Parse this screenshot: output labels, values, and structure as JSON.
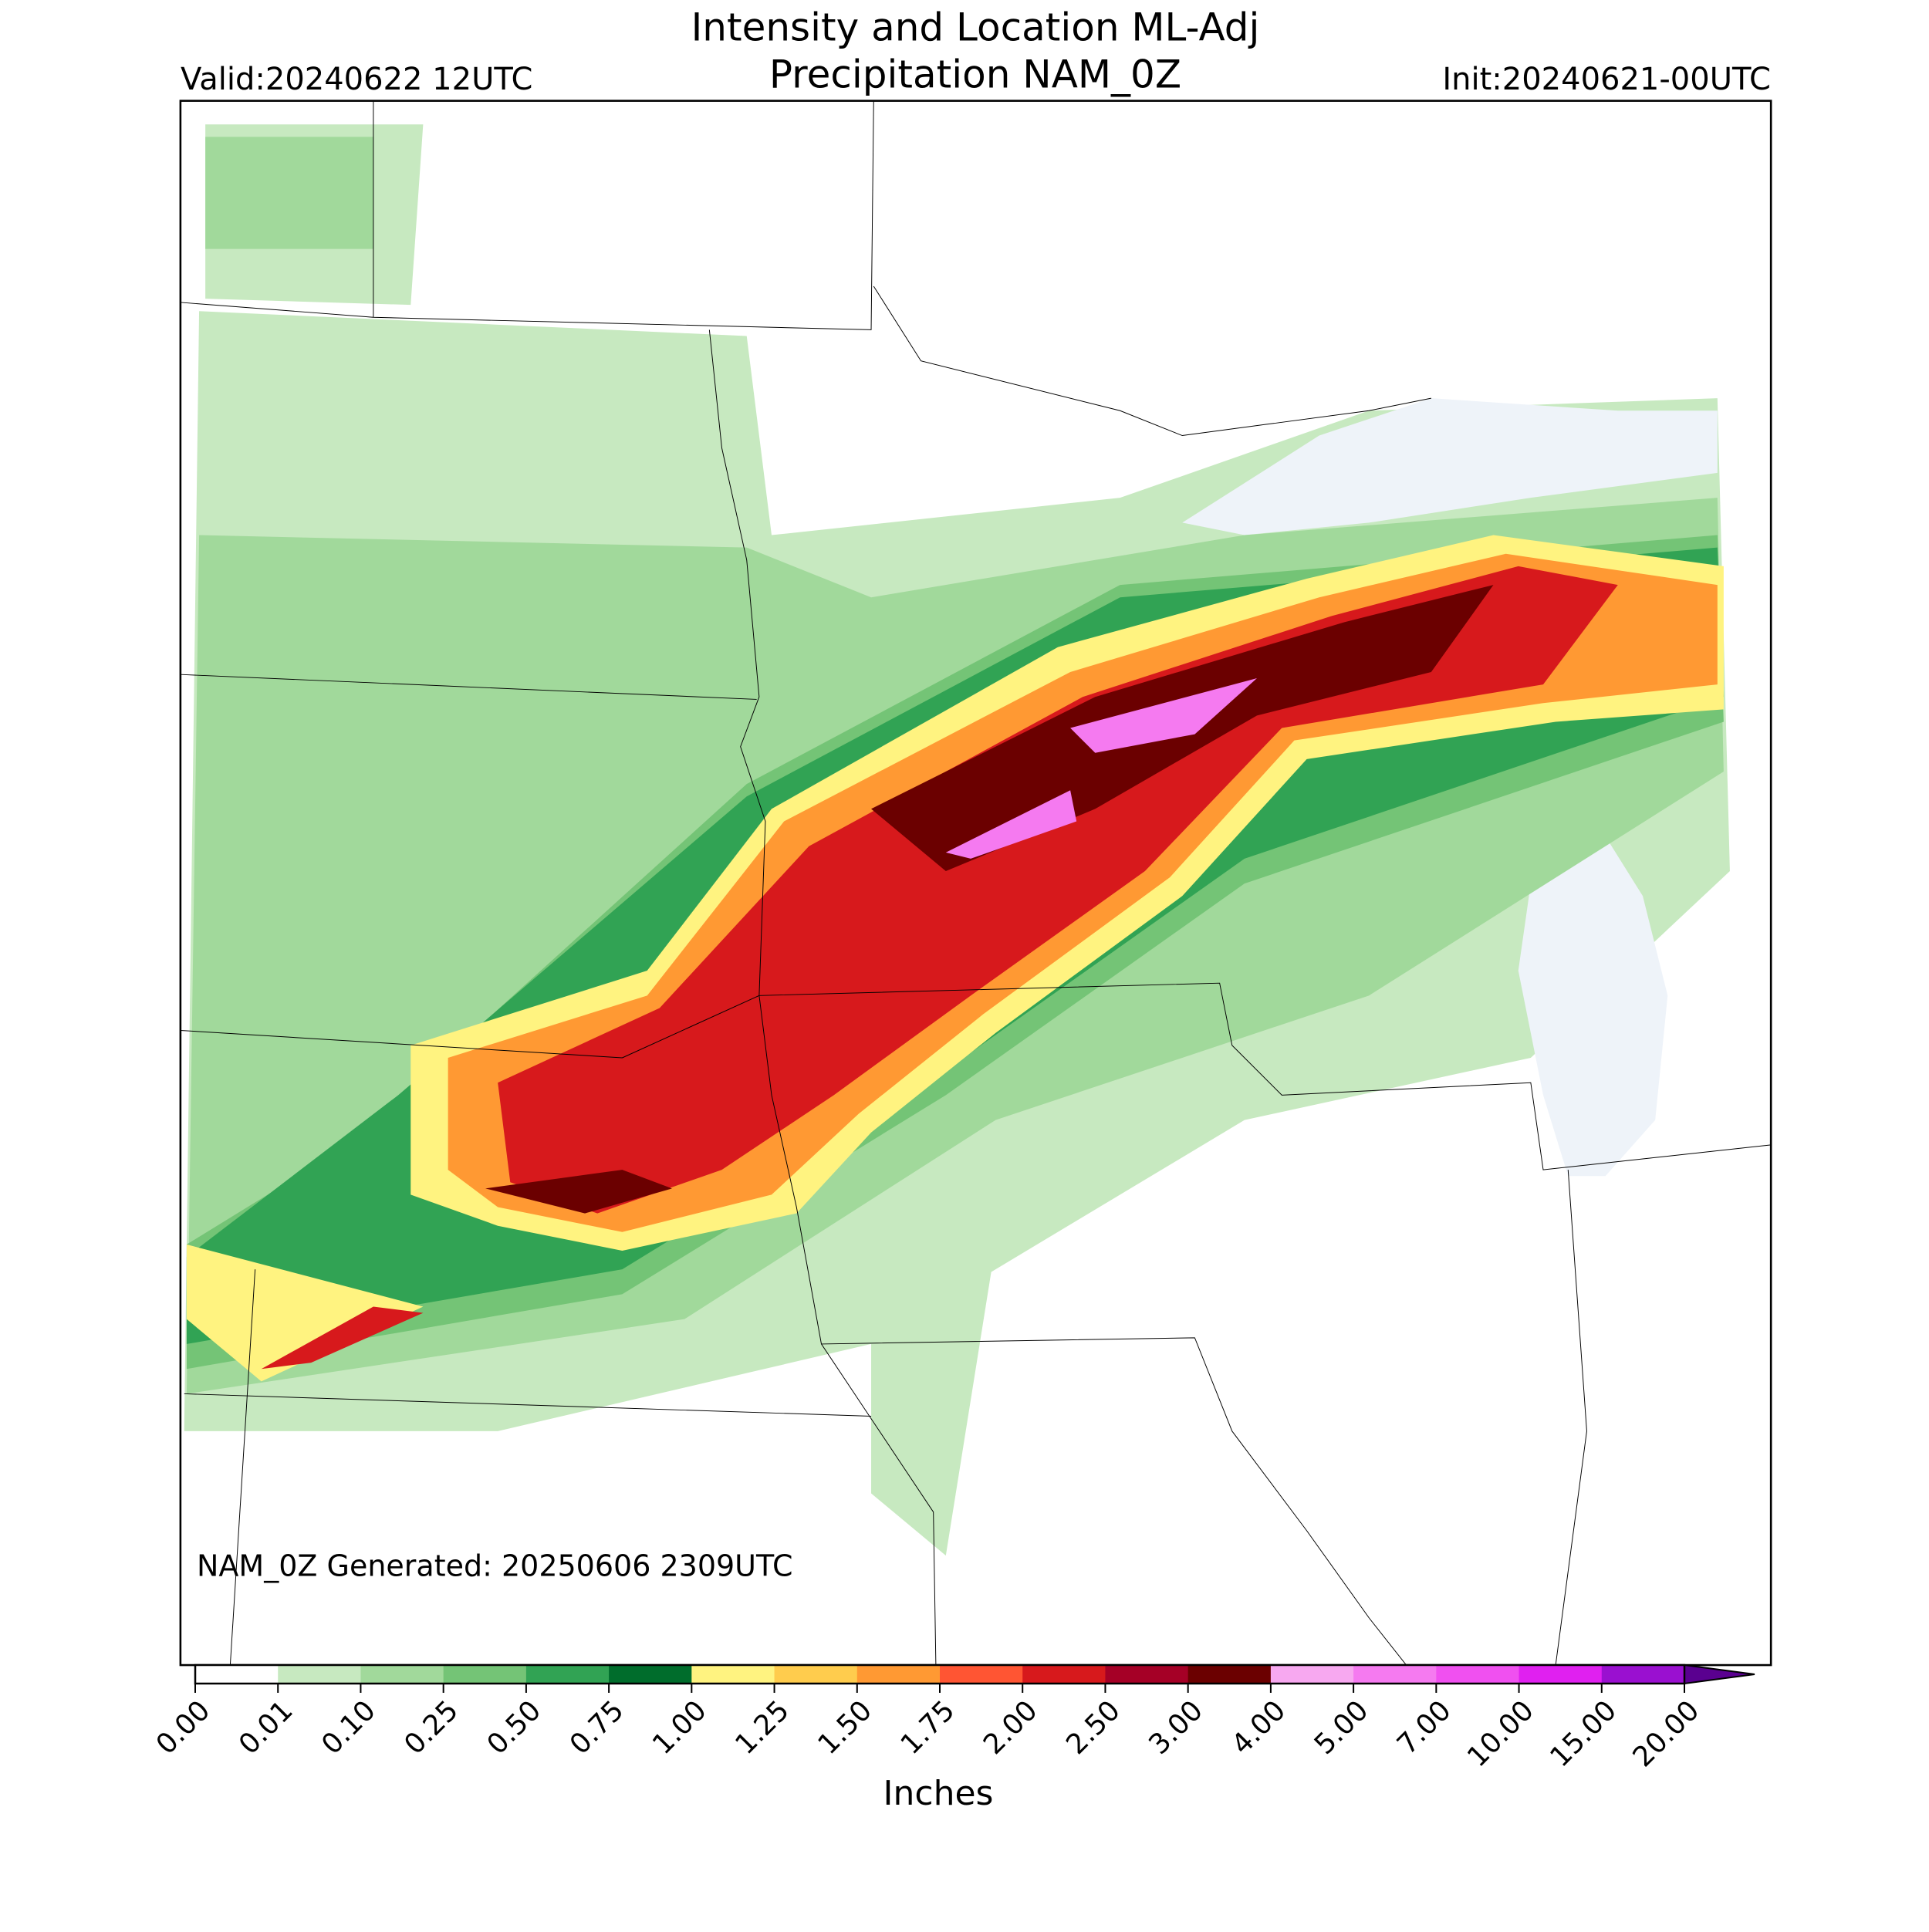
{
  "header": {
    "title_lines": [
      "Intensity and Location ML-Adj",
      "Precipitation NAM_0Z"
    ],
    "valid": "Valid:20240622 12UTC",
    "init": "Init:20240621-00UTC"
  },
  "footer_note": "NAM_0Z Generated: 20250606 2309UTC",
  "colorbar": {
    "label": "Inches",
    "ticks": [
      {
        "value": 0,
        "label": "0.00"
      },
      {
        "value": 0.01,
        "label": "0.01"
      },
      {
        "value": 0.1,
        "label": "0.10"
      },
      {
        "value": 0.25,
        "label": "0.25"
      },
      {
        "value": 0.5,
        "label": "0.50"
      },
      {
        "value": 0.75,
        "label": "0.75"
      },
      {
        "value": 1,
        "label": "1.00"
      },
      {
        "value": 1.25,
        "label": "1.25"
      },
      {
        "value": 1.5,
        "label": "1.50"
      },
      {
        "value": 1.75,
        "label": "1.75"
      },
      {
        "value": 2,
        "label": "2.00"
      },
      {
        "value": 2.5,
        "label": "2.50"
      },
      {
        "value": 3,
        "label": "3.00"
      },
      {
        "value": 4,
        "label": "4.00"
      },
      {
        "value": 5,
        "label": "5.00"
      },
      {
        "value": 7,
        "label": "7.00"
      },
      {
        "value": 10,
        "label": "10.00"
      },
      {
        "value": 15,
        "label": "15.00"
      },
      {
        "value": 20,
        "label": "20.00"
      }
    ],
    "colors": [
      "#ffffff",
      "#c7e9c0",
      "#a1d99b",
      "#74c476",
      "#31a354",
      "#006d2c",
      "#fff380",
      "#ffcc4d",
      "#ff9933",
      "#ff5533",
      "#d7191c",
      "#a50026",
      "#6b0000",
      "#f7a8f0",
      "#f57af0",
      "#f050f0",
      "#e020f0",
      "#9a10d0"
    ],
    "extend_color": "#5a0090"
  }
}
